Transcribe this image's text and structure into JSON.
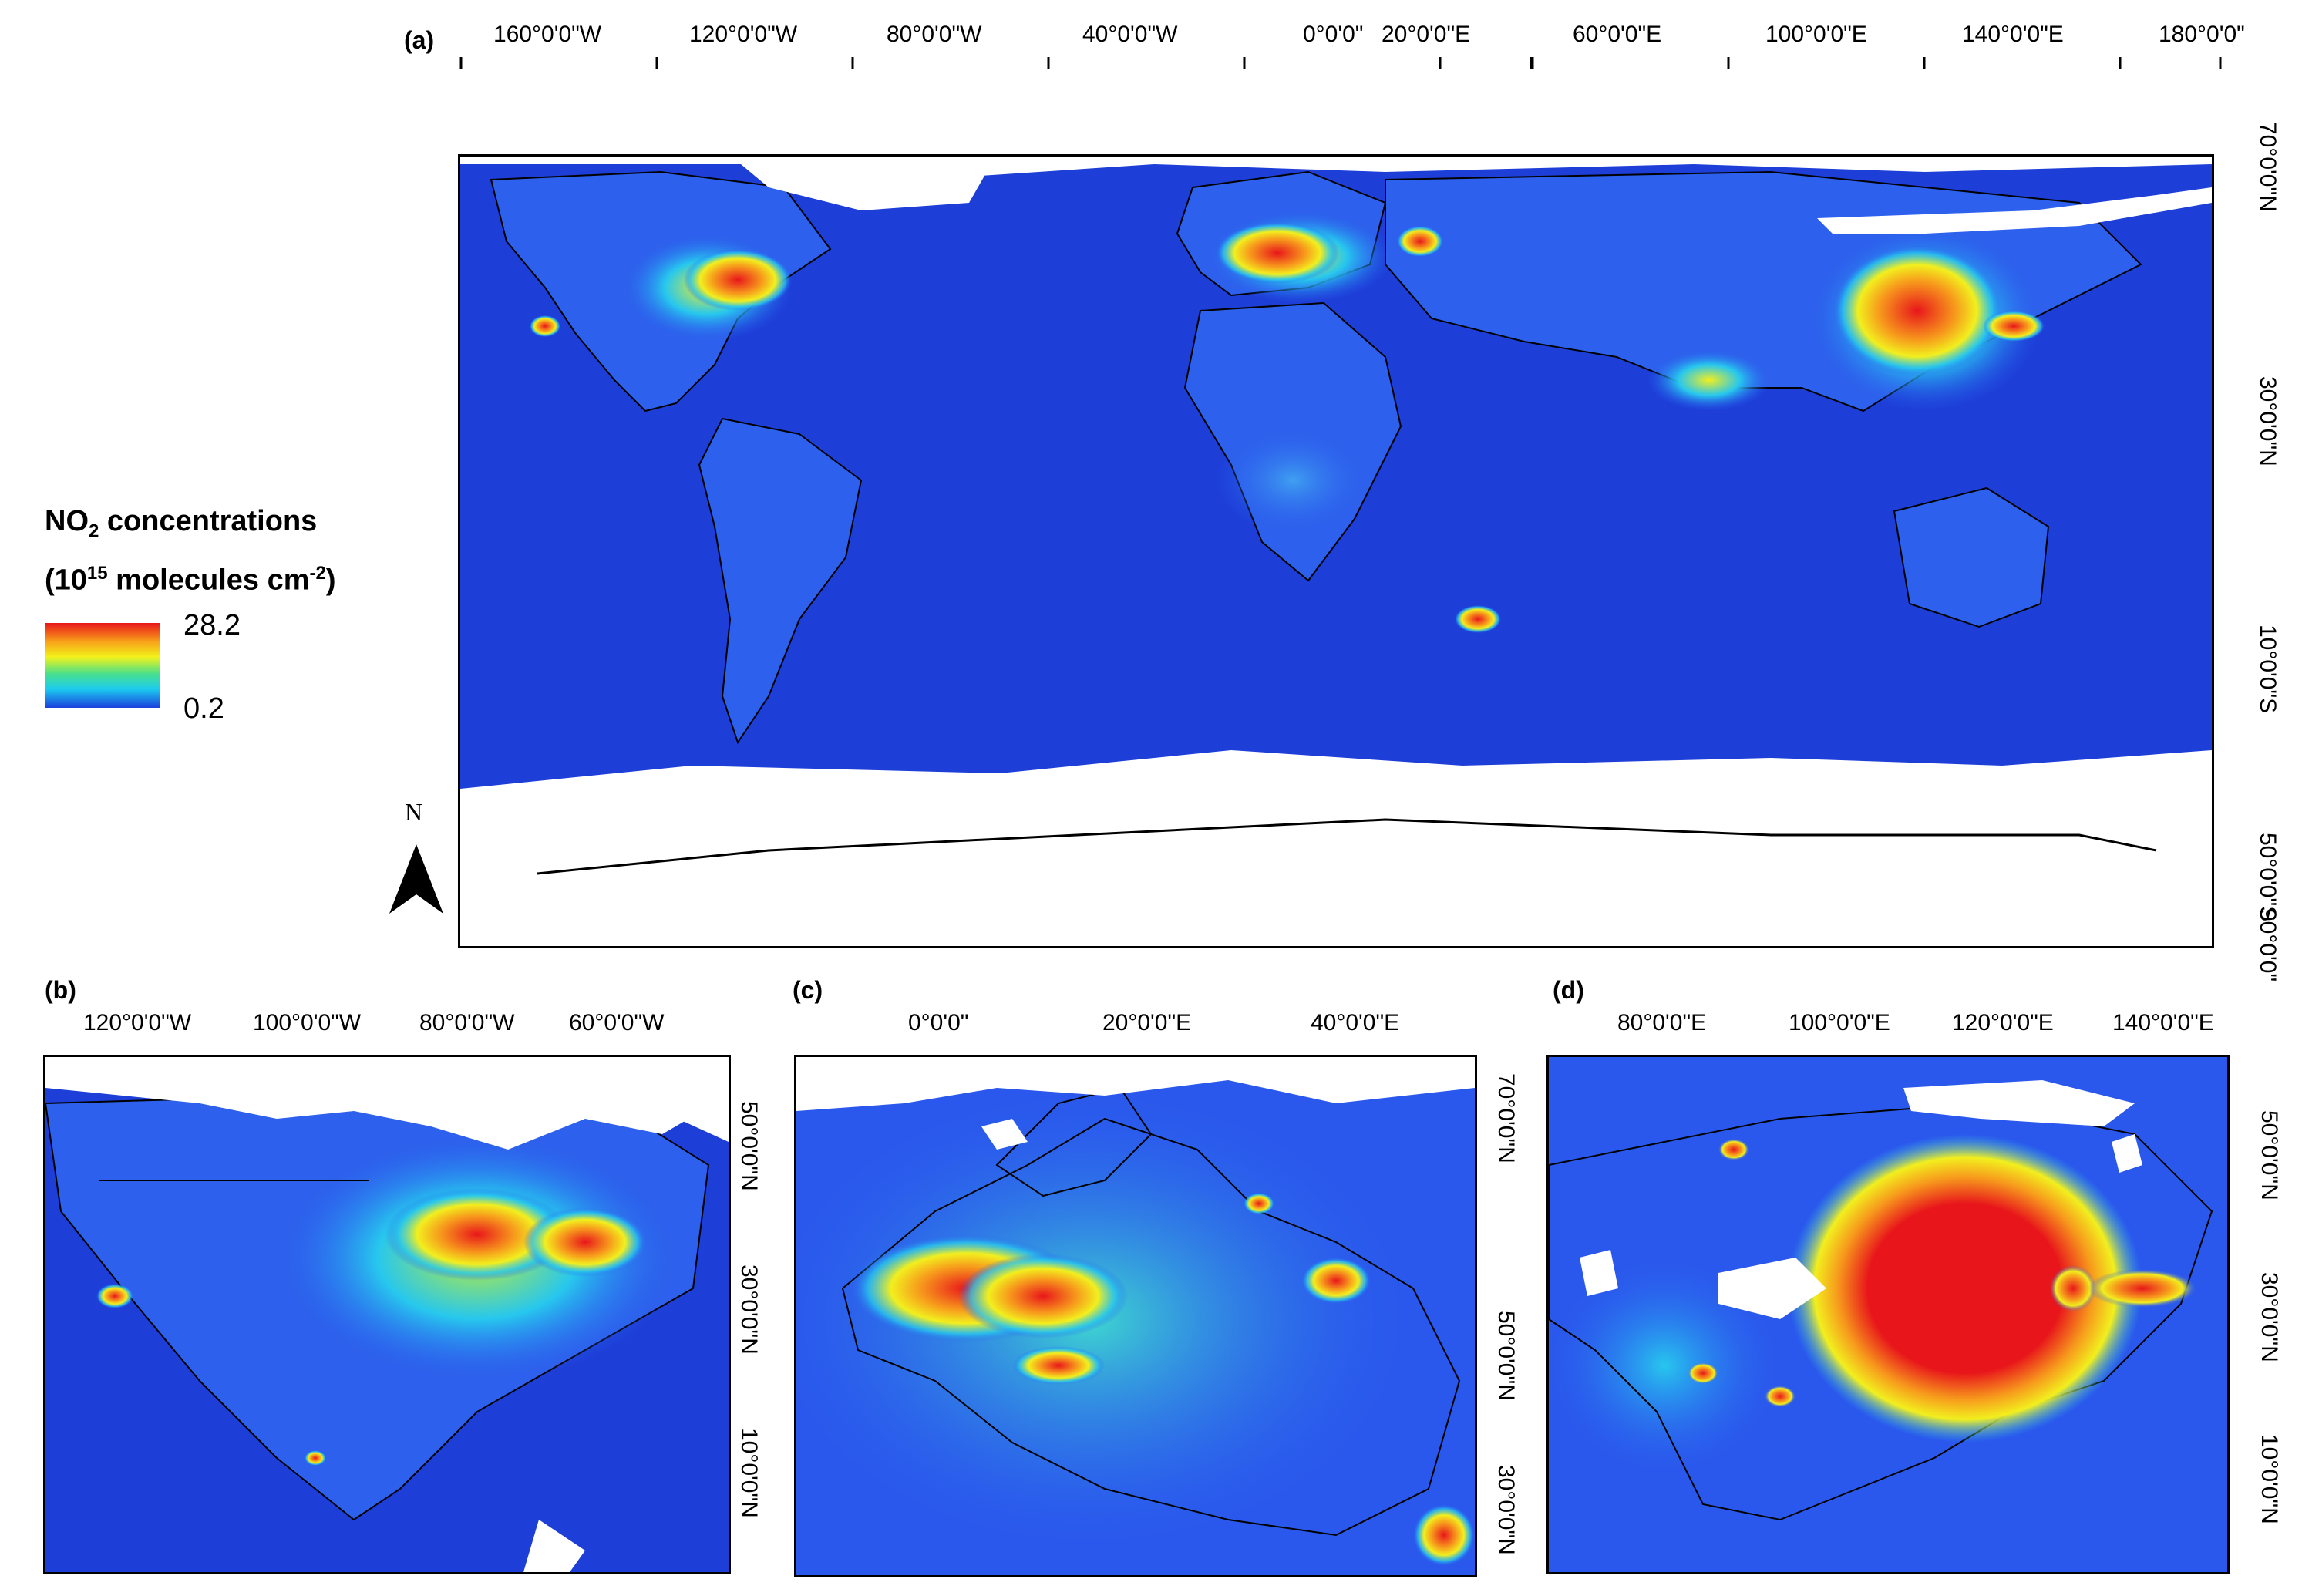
{
  "panels": {
    "a": {
      "label": "(a)",
      "top_ticks": [
        "160°0'0\"W",
        "120°0'0\"W",
        "80°0'0\"W",
        "40°0'0\"W",
        "0°0'0\"",
        "20°0'0\"E",
        "60°0'0\"E",
        "100°0'0\"E",
        "140°0'0\"E",
        "180°0'0\""
      ],
      "right_ticks": [
        "70°0'0\"N",
        "30°0'0\"N",
        "10°0'0\"S",
        "50°0'0\"S",
        "90°0'0\""
      ]
    },
    "b": {
      "label": "(b)",
      "top_ticks": [
        "120°0'0\"W",
        "100°0'0\"W",
        "80°0'0\"W",
        "60°0'0\"W"
      ],
      "right_ticks": [
        "50°0'0\"N",
        "30°0'0\"N",
        "10°0'0\"N"
      ]
    },
    "c": {
      "label": "(c)",
      "top_ticks": [
        "0°0'0\"",
        "20°0'0\"E",
        "40°0'0\"E"
      ],
      "right_ticks": [
        "70°0'0\"N",
        "50°0'0\"N",
        "30°0'0\"N"
      ]
    },
    "d": {
      "label": "(d)",
      "top_ticks": [
        "80°0'0\"E",
        "100°0'0\"E",
        "120°0'0\"E",
        "140°0'0\"E"
      ],
      "right_ticks": [
        "50°0'0\"N",
        "30°0'0\"N",
        "10°0'0\"N"
      ]
    }
  },
  "legend": {
    "title_prefix": "NO",
    "title_sub": "2",
    "title_suffix": " concentrations",
    "units_prefix": "(10",
    "units_sup": "15",
    "units_mid": " molecules cm",
    "units_sup2": "-2",
    "units_suffix": ")",
    "max": "28.2",
    "min": "0.2"
  },
  "north_arrow": {
    "label": "N"
  },
  "colors": {
    "ocean": "#1d3fd8",
    "low": "#2b5ff0",
    "mid": "#27c7ee",
    "high_yellow": "#f2ef1e",
    "high_orange": "#f79a1c",
    "hotspot": "#e8161b",
    "cloud_mask": "#ffffff"
  }
}
